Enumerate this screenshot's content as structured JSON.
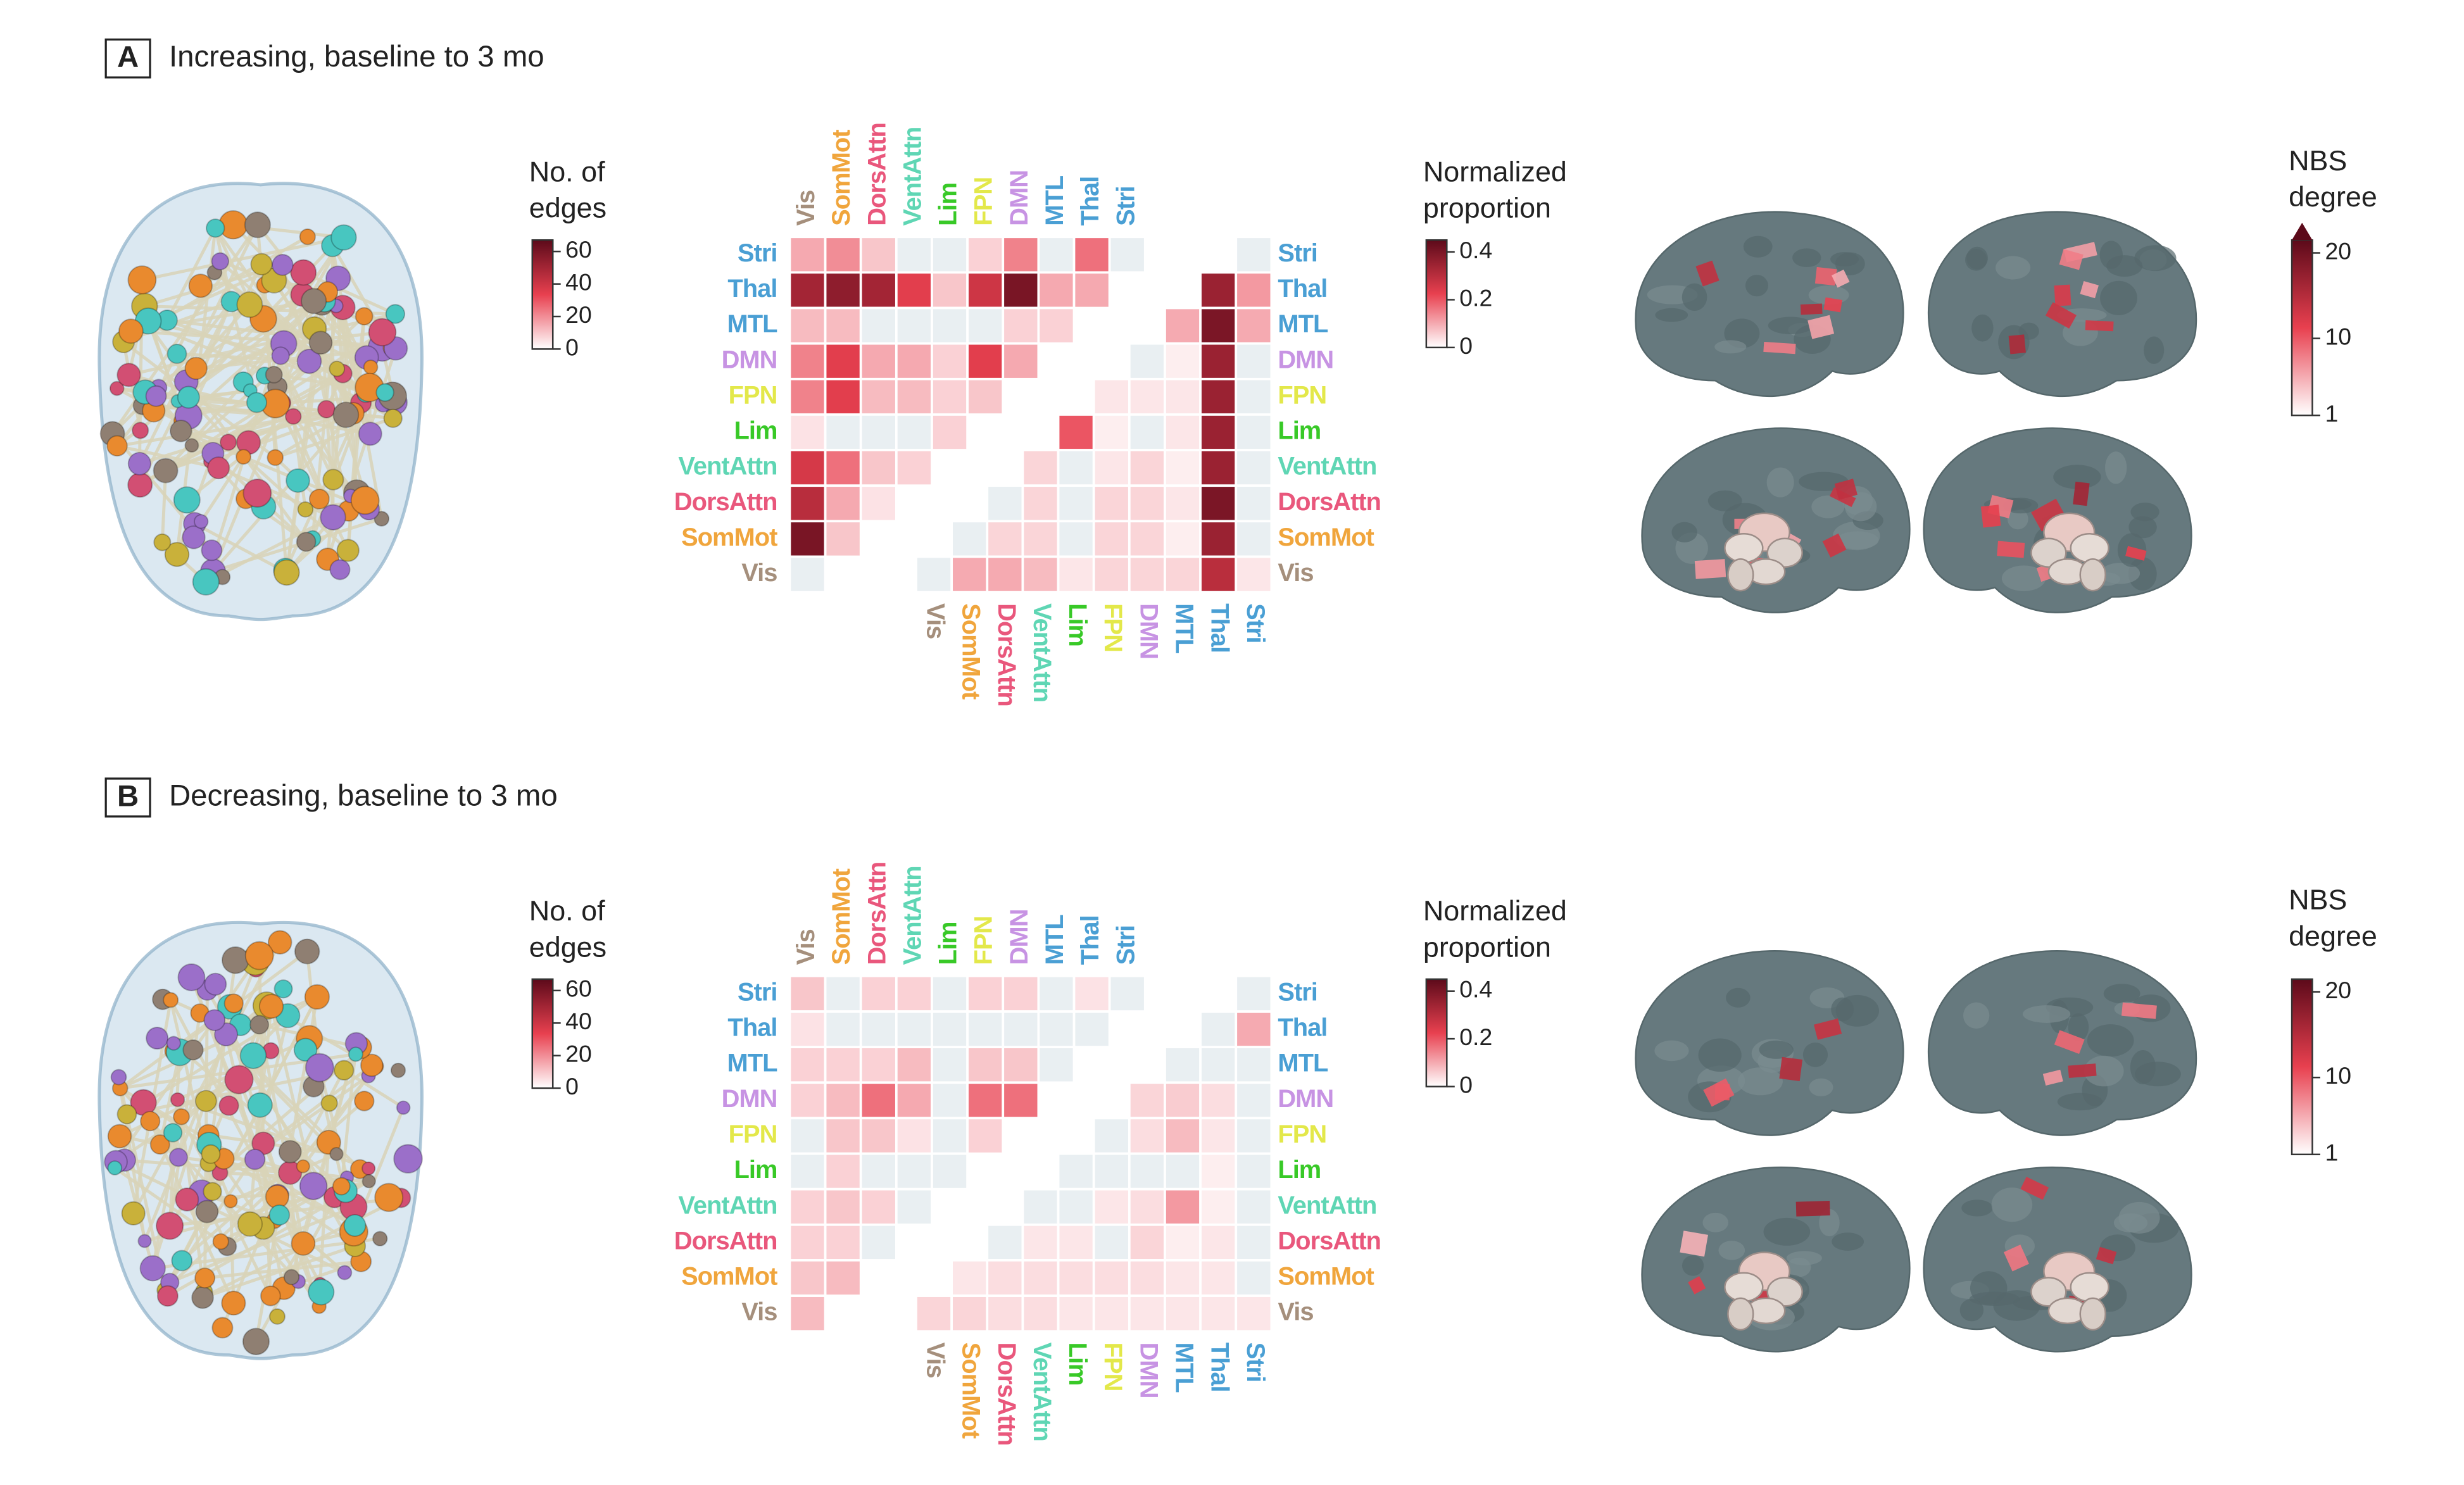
{
  "chart_data": [
    {
      "type": "heatmap",
      "panel": "A",
      "title": "Increasing, baseline to 3 mo",
      "categories": [
        "Vis",
        "SomMot",
        "DorsAttn",
        "VentAttn",
        "Lim",
        "FPN",
        "DMN",
        "MTL",
        "Thal",
        "Stri"
      ],
      "category_colors": [
        "#a58f7c",
        "#f0a53c",
        "#e9577c",
        "#5fd6b4",
        "#38c927",
        "#e3e84a",
        "#c793e3",
        "#4a9fd4",
        "#4a9fd4",
        "#4a9fd4"
      ],
      "edges": [
        [
          15,
          20,
          10,
          0,
          0,
          8,
          22,
          0,
          25,
          0
        ],
        [
          50,
          55,
          50,
          35,
          10,
          40,
          60,
          15,
          15
        ],
        [
          12,
          12,
          0,
          0,
          0,
          0,
          8,
          8
        ],
        [
          22,
          35,
          15,
          15,
          8,
          35,
          15
        ],
        [
          22,
          35,
          12,
          12,
          8,
          10
        ],
        [
          5,
          0,
          0,
          0,
          8
        ],
        [
          38,
          25,
          10,
          8
        ],
        [
          45,
          15,
          5
        ],
        [
          60,
          10
        ],
        [
          0
        ]
      ],
      "proportion": [
        [
          0
        ],
        [
          0.35,
          0.12
        ],
        [
          0.1,
          0.4,
          0.1
        ],
        [
          0,
          0.02,
          0.35,
          0
        ],
        [
          0.03,
          0.03,
          0.03,
          0.35,
          0
        ],
        [
          0.2,
          0.02,
          0,
          0.03,
          0.35,
          0
        ],
        [
          0.05,
          0,
          0.03,
          0.05,
          0.02,
          0.35,
          0
        ],
        [
          0,
          0.05,
          0,
          0.05,
          0.05,
          0.03,
          0.4,
          0
        ],
        [
          0,
          0.05,
          0.05,
          0,
          0.05,
          0.05,
          0.02,
          0.35,
          0
        ],
        [
          0,
          0.1,
          0.1,
          0.08,
          0.03,
          0.05,
          0.05,
          0.05,
          0.3,
          0.03
        ]
      ],
      "edges_legend": {
        "title": [
          "No. of",
          "edges"
        ],
        "lim": [
          0,
          67
        ],
        "ticks": [
          0,
          20,
          40,
          60
        ]
      },
      "proportion_legend": {
        "title": [
          "Normalized",
          "proportion"
        ],
        "lim": [
          0,
          0.45
        ],
        "ticks": [
          0,
          0.2,
          0.4
        ]
      },
      "nbs_legend": {
        "title": [
          "NBS",
          "degree"
        ],
        "lim": [
          1,
          21.5
        ],
        "ticks": [
          1,
          10,
          20
        ],
        "extend": true
      },
      "colors": [
        "#ffffff",
        "#e8404f",
        "#5c0a1a"
      ],
      "empty_color": "#e9eff2"
    },
    {
      "type": "heatmap",
      "panel": "B",
      "title": "Decreasing, baseline to 3 mo",
      "categories": [
        "Vis",
        "SomMot",
        "DorsAttn",
        "VentAttn",
        "Lim",
        "FPN",
        "DMN",
        "MTL",
        "Thal",
        "Stri"
      ],
      "category_colors": [
        "#a58f7c",
        "#f0a53c",
        "#e9577c",
        "#5fd6b4",
        "#38c927",
        "#e3e84a",
        "#c793e3",
        "#4a9fd4",
        "#4a9fd4",
        "#4a9fd4"
      ],
      "edges": [
        [
          10,
          0,
          8,
          8,
          0,
          8,
          8,
          0,
          5,
          0
        ],
        [
          5,
          0,
          0,
          0,
          0,
          0,
          0,
          0,
          0
        ],
        [
          8,
          8,
          8,
          12,
          0,
          10,
          10,
          0
        ],
        [
          8,
          12,
          25,
          15,
          0,
          25,
          25
        ],
        [
          0,
          10,
          10,
          5,
          0,
          8
        ],
        [
          0,
          8,
          0,
          0,
          0
        ],
        [
          8,
          10,
          8,
          0
        ],
        [
          8,
          8,
          0
        ],
        [
          10,
          12
        ],
        [
          12
        ]
      ],
      "proportion": [
        [
          0
        ],
        [
          0,
          0.1
        ],
        [
          0,
          0,
          0
        ],
        [
          0.05,
          0.06,
          0.04,
          0
        ],
        [
          0,
          0.04,
          0.08,
          0.03,
          0
        ],
        [
          0,
          0,
          0,
          0,
          0.02,
          0
        ],
        [
          0,
          0,
          0.03,
          0.04,
          0.12,
          0.02,
          0
        ],
        [
          0,
          0.03,
          0.03,
          0,
          0.05,
          0.02,
          0.03,
          0
        ],
        [
          0.03,
          0.04,
          0.04,
          0.04,
          0.04,
          0.04,
          0.03,
          0.03,
          0
        ],
        [
          0.05,
          0.05,
          0.04,
          0.04,
          0.03,
          0.03,
          0.03,
          0.03,
          0.03,
          0.03
        ]
      ],
      "edges_legend": {
        "title": [
          "No. of",
          "edges"
        ],
        "lim": [
          0,
          67
        ],
        "ticks": [
          0,
          20,
          40,
          60
        ]
      },
      "proportion_legend": {
        "title": [
          "Normalized",
          "proportion"
        ],
        "lim": [
          0,
          0.45
        ],
        "ticks": [
          0,
          0.2,
          0.4
        ]
      },
      "nbs_legend": {
        "title": [
          "NBS",
          "degree"
        ],
        "lim": [
          1,
          21.5
        ],
        "ticks": [
          1,
          10,
          20
        ],
        "extend": false
      },
      "colors": [
        "#ffffff",
        "#e8404f",
        "#5c0a1a"
      ],
      "empty_color": "#e9eff2"
    }
  ]
}
